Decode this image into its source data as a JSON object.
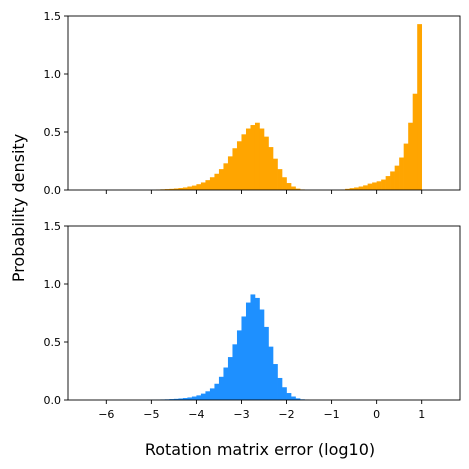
{
  "chart_data": {
    "type": "bar",
    "shared_xlabel": "Rotation matrix error (log10)",
    "shared_ylabel": "Probability density",
    "x_ticks": [
      -6,
      -5,
      -4,
      -3,
      -2,
      -1,
      0,
      1
    ],
    "x_tick_labels": [
      "−6",
      "−5",
      "−4",
      "−3",
      "−2",
      "−1",
      "0",
      "1"
    ],
    "xlim": [
      -6.85,
      1.85
    ],
    "bin_width": 0.1,
    "panels": [
      {
        "name": "top",
        "color": "#FFA500",
        "ylim": [
          0,
          1.5
        ],
        "y_ticks": [
          0,
          0.5,
          1.0,
          1.5
        ],
        "y_tick_labels": [
          "0.0",
          "0.5",
          "1.0",
          "1.5"
        ],
        "show_x_tick_labels": false,
        "bins": [
          [
            -4.9,
            0.004
          ],
          [
            -4.8,
            0.006
          ],
          [
            -4.7,
            0.008
          ],
          [
            -4.6,
            0.01
          ],
          [
            -4.5,
            0.013
          ],
          [
            -4.4,
            0.017
          ],
          [
            -4.3,
            0.022
          ],
          [
            -4.2,
            0.03
          ],
          [
            -4.1,
            0.038
          ],
          [
            -4.0,
            0.05
          ],
          [
            -3.9,
            0.065
          ],
          [
            -3.8,
            0.085
          ],
          [
            -3.7,
            0.11
          ],
          [
            -3.6,
            0.14
          ],
          [
            -3.5,
            0.18
          ],
          [
            -3.4,
            0.23
          ],
          [
            -3.3,
            0.29
          ],
          [
            -3.2,
            0.36
          ],
          [
            -3.1,
            0.42
          ],
          [
            -3.0,
            0.48
          ],
          [
            -2.9,
            0.53
          ],
          [
            -2.8,
            0.56
          ],
          [
            -2.7,
            0.58
          ],
          [
            -2.6,
            0.53
          ],
          [
            -2.5,
            0.46
          ],
          [
            -2.4,
            0.37
          ],
          [
            -2.3,
            0.27
          ],
          [
            -2.2,
            0.18
          ],
          [
            -2.1,
            0.11
          ],
          [
            -2.0,
            0.06
          ],
          [
            -1.9,
            0.03
          ],
          [
            -1.8,
            0.012
          ],
          [
            -1.7,
            0.005
          ],
          [
            -0.8,
            0.004
          ],
          [
            -0.7,
            0.01
          ],
          [
            -0.6,
            0.016
          ],
          [
            -0.5,
            0.022
          ],
          [
            -0.4,
            0.03
          ],
          [
            -0.3,
            0.04
          ],
          [
            -0.2,
            0.055
          ],
          [
            -0.1,
            0.065
          ],
          [
            0.0,
            0.075
          ],
          [
            0.1,
            0.09
          ],
          [
            0.2,
            0.12
          ],
          [
            0.3,
            0.16
          ],
          [
            0.4,
            0.21
          ],
          [
            0.5,
            0.28
          ],
          [
            0.6,
            0.4
          ],
          [
            0.7,
            0.58
          ],
          [
            0.8,
            0.83
          ],
          [
            0.9,
            1.43
          ]
        ]
      },
      {
        "name": "bottom",
        "color": "#1E90FF",
        "ylim": [
          0,
          1.5
        ],
        "y_ticks": [
          0,
          0.5,
          1.0,
          1.5
        ],
        "y_tick_labels": [
          "0.0",
          "0.5",
          "1.0",
          "1.5"
        ],
        "show_x_tick_labels": true,
        "bins": [
          [
            -5.1,
            0.002
          ],
          [
            -5.0,
            0.003
          ],
          [
            -4.9,
            0.004
          ],
          [
            -4.8,
            0.005
          ],
          [
            -4.7,
            0.006
          ],
          [
            -4.6,
            0.008
          ],
          [
            -4.5,
            0.01
          ],
          [
            -4.4,
            0.013
          ],
          [
            -4.3,
            0.017
          ],
          [
            -4.2,
            0.022
          ],
          [
            -4.1,
            0.03
          ],
          [
            -4.0,
            0.04
          ],
          [
            -3.9,
            0.055
          ],
          [
            -3.8,
            0.075
          ],
          [
            -3.7,
            0.1
          ],
          [
            -3.6,
            0.14
          ],
          [
            -3.5,
            0.2
          ],
          [
            -3.4,
            0.28
          ],
          [
            -3.3,
            0.37
          ],
          [
            -3.2,
            0.48
          ],
          [
            -3.1,
            0.6
          ],
          [
            -3.0,
            0.72
          ],
          [
            -2.9,
            0.84
          ],
          [
            -2.8,
            0.91
          ],
          [
            -2.7,
            0.88
          ],
          [
            -2.6,
            0.78
          ],
          [
            -2.5,
            0.63
          ],
          [
            -2.4,
            0.46
          ],
          [
            -2.3,
            0.31
          ],
          [
            -2.2,
            0.19
          ],
          [
            -2.1,
            0.11
          ],
          [
            -2.0,
            0.06
          ],
          [
            -1.9,
            0.03
          ],
          [
            -1.8,
            0.014
          ],
          [
            -1.7,
            0.006
          ],
          [
            -1.6,
            0.003
          ]
        ]
      }
    ]
  }
}
